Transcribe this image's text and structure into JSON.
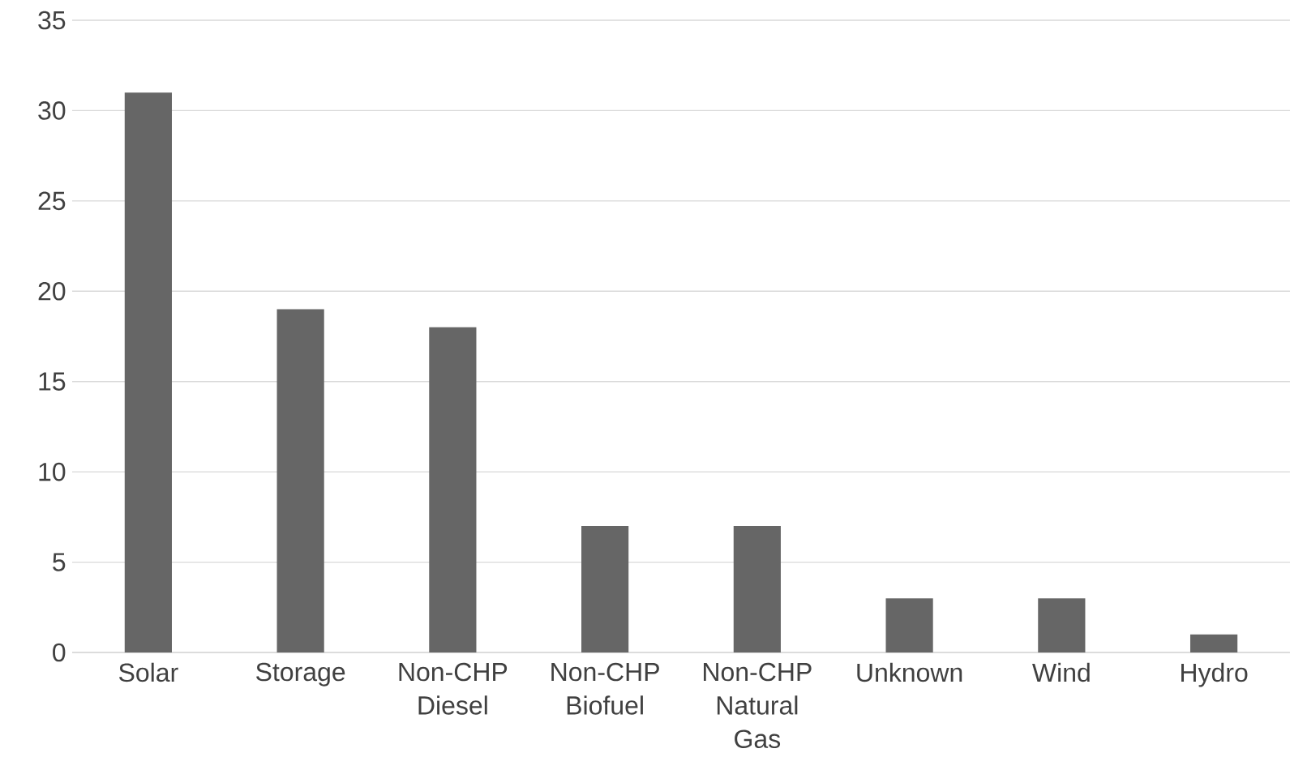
{
  "chart_data": {
    "type": "bar",
    "categories": [
      "Solar",
      "Storage",
      "Non-CHP Diesel",
      "Non-CHP Biofuel",
      "Non-CHP Natural Gas",
      "Unknown",
      "Wind",
      "Hydro"
    ],
    "values": [
      31,
      19,
      18,
      7,
      7,
      3,
      3,
      1
    ],
    "color": "#666666",
    "ylim": [
      0,
      35
    ],
    "yticks": [
      0,
      5,
      10,
      15,
      20,
      25,
      30,
      35
    ],
    "grid": "y"
  }
}
